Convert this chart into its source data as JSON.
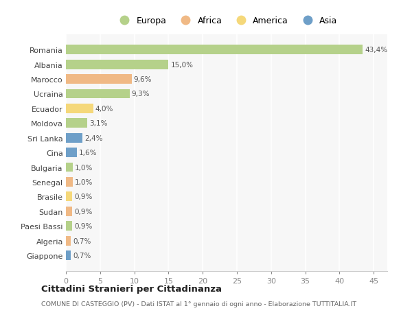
{
  "countries": [
    "Romania",
    "Albania",
    "Marocco",
    "Ucraina",
    "Ecuador",
    "Moldova",
    "Sri Lanka",
    "Cina",
    "Bulgaria",
    "Senegal",
    "Brasile",
    "Sudan",
    "Paesi Bassi",
    "Algeria",
    "Giappone"
  ],
  "values": [
    43.4,
    15.0,
    9.6,
    9.3,
    4.0,
    3.1,
    2.4,
    1.6,
    1.0,
    1.0,
    0.9,
    0.9,
    0.9,
    0.7,
    0.7
  ],
  "labels": [
    "43,4%",
    "15,0%",
    "9,6%",
    "9,3%",
    "4,0%",
    "3,1%",
    "2,4%",
    "1,6%",
    "1,0%",
    "1,0%",
    "0,9%",
    "0,9%",
    "0,9%",
    "0,7%",
    "0,7%"
  ],
  "continent": [
    "Europa",
    "Europa",
    "Africa",
    "Europa",
    "America",
    "Europa",
    "Asia",
    "Asia",
    "Europa",
    "Africa",
    "America",
    "Africa",
    "Europa",
    "Africa",
    "Asia"
  ],
  "colors": {
    "Europa": "#b5d18a",
    "Africa": "#f0b985",
    "America": "#f5d87a",
    "Asia": "#6e9fc8"
  },
  "bg_color": "#ffffff",
  "plot_bg_color": "#f7f7f7",
  "grid_color": "#ffffff",
  "title": "Cittadini Stranieri per Cittadinanza",
  "subtitle": "COMUNE DI CASTEGGIO (PV) - Dati ISTAT al 1° gennaio di ogni anno - Elaborazione TUTTITALIA.IT",
  "xlim": [
    0,
    47
  ],
  "xticks": [
    0,
    5,
    10,
    15,
    20,
    25,
    30,
    35,
    40,
    45
  ],
  "legend_items": [
    "Europa",
    "Africa",
    "America",
    "Asia"
  ]
}
